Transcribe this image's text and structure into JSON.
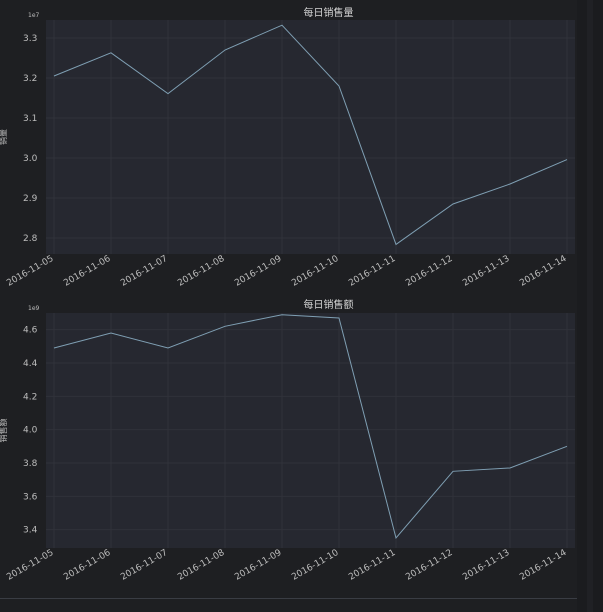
{
  "chart_data": [
    {
      "type": "line",
      "title": "每日销售量",
      "xlabel": "",
      "ylabel": "销量",
      "y_exponent_label": "1e7",
      "x": [
        "2016-11-05",
        "2016-11-06",
        "2016-11-07",
        "2016-11-08",
        "2016-11-09",
        "2016-11-10",
        "2016-11-11",
        "2016-11-12",
        "2016-11-13",
        "2016-11-14"
      ],
      "values": [
        32050000,
        32630000,
        31610000,
        32700000,
        33320000,
        31800000,
        27840000,
        28850000,
        29350000,
        29960000
      ],
      "ylim": [
        27600000,
        33450000
      ],
      "yticks": [
        28000000,
        29000000,
        30000000,
        31000000,
        32000000,
        33000000
      ],
      "ytick_labels": [
        "2.8",
        "2.9",
        "3.0",
        "3.1",
        "3.2",
        "3.3"
      ],
      "grid": true,
      "line_color": "#7f9fb3"
    },
    {
      "type": "line",
      "title": "每日销售额",
      "xlabel": "",
      "ylabel": "销售额",
      "y_exponent_label": "1e9",
      "x": [
        "2016-11-05",
        "2016-11-06",
        "2016-11-07",
        "2016-11-08",
        "2016-11-09",
        "2016-11-10",
        "2016-11-11",
        "2016-11-12",
        "2016-11-13",
        "2016-11-14"
      ],
      "values": [
        4490000000,
        4580000000,
        4490000000,
        4620000000,
        4690000000,
        4670000000,
        3350000000,
        3750000000,
        3770000000,
        3900000000
      ],
      "ylim": [
        3290000000,
        4700000000
      ],
      "yticks": [
        3400000000,
        3600000000,
        3800000000,
        4000000000,
        4200000000,
        4400000000,
        4600000000
      ],
      "ytick_labels": [
        "3.4",
        "3.6",
        "3.8",
        "4.0",
        "4.2",
        "4.4",
        "4.6"
      ],
      "grid": true,
      "line_color": "#7f9fb3"
    }
  ]
}
